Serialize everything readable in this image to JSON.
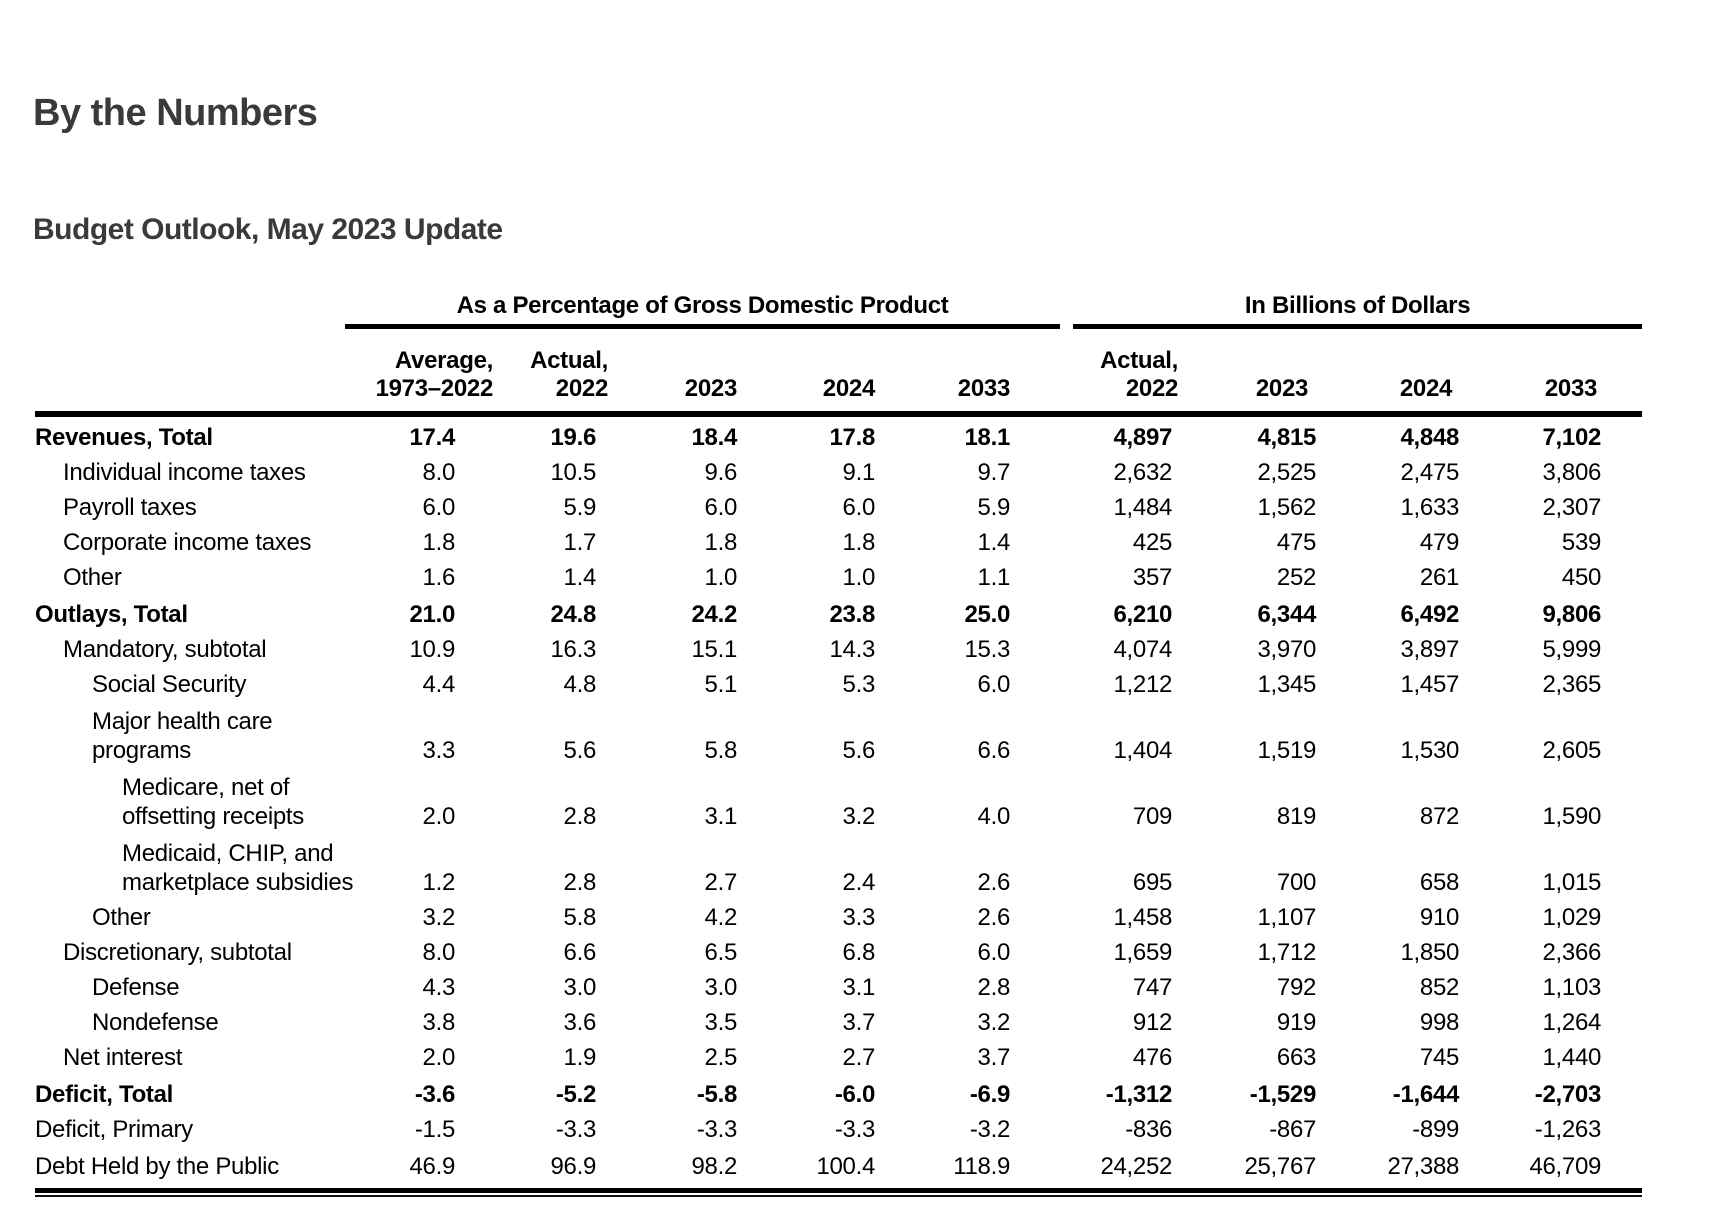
{
  "header": {
    "page_title": "By the Numbers",
    "table_title": "Budget Outlook, May 2023 Update"
  },
  "colors": {
    "background": "#ffffff",
    "heading_text": "#3a3a3a",
    "table_text": "#000000",
    "rule": "#000000"
  },
  "chart_data": {
    "type": "table",
    "title": "By the Numbers",
    "subtitle": "Budget Outlook, May 2023 Update",
    "column_groups": [
      "As a Percentage of Gross Domestic Product",
      "In Billions of Dollars"
    ],
    "columns_pct": [
      {
        "line1": "Average,",
        "line2": "1973–2022"
      },
      {
        "line1": "Actual,",
        "line2": "2022"
      },
      {
        "line1": "",
        "line2": "2023"
      },
      {
        "line1": "",
        "line2": "2024"
      },
      {
        "line1": "",
        "line2": "2033"
      }
    ],
    "columns_bn": [
      {
        "line1": "Actual,",
        "line2": "2022"
      },
      {
        "line1": "",
        "line2": "2023"
      },
      {
        "line1": "",
        "line2": "2024"
      },
      {
        "line1": "",
        "line2": "2033"
      }
    ],
    "rows": [
      {
        "label": "Revenues, Total",
        "indent": 0,
        "bold": true,
        "pct": [
          17.4,
          19.6,
          18.4,
          17.8,
          18.1
        ],
        "billions": [
          4897,
          4815,
          4848,
          7102
        ]
      },
      {
        "label": "Individual income taxes",
        "indent": 1,
        "pct": [
          8.0,
          10.5,
          9.6,
          9.1,
          9.7
        ],
        "billions": [
          2632,
          2525,
          2475,
          3806
        ]
      },
      {
        "label": "Payroll taxes",
        "indent": 1,
        "pct": [
          6.0,
          5.9,
          6.0,
          6.0,
          5.9
        ],
        "billions": [
          1484,
          1562,
          1633,
          2307
        ]
      },
      {
        "label": "Corporate income taxes",
        "indent": 1,
        "pct": [
          1.8,
          1.7,
          1.8,
          1.8,
          1.4
        ],
        "billions": [
          425,
          475,
          479,
          539
        ]
      },
      {
        "label": "Other",
        "indent": 1,
        "pct": [
          1.6,
          1.4,
          1.0,
          1.0,
          1.1
        ],
        "billions": [
          357,
          252,
          261,
          450
        ]
      },
      {
        "label": "Outlays, Total",
        "indent": 0,
        "bold": true,
        "space_before": true,
        "pct": [
          21.0,
          24.8,
          24.2,
          23.8,
          25.0
        ],
        "billions": [
          6210,
          6344,
          6492,
          9806
        ]
      },
      {
        "label": "Mandatory, subtotal",
        "indent": 1,
        "pct": [
          10.9,
          16.3,
          15.1,
          14.3,
          15.3
        ],
        "billions": [
          4074,
          3970,
          3897,
          5999
        ]
      },
      {
        "label": "Social Security",
        "indent": 2,
        "pct": [
          4.4,
          4.8,
          5.1,
          5.3,
          6.0
        ],
        "billions": [
          1212,
          1345,
          1457,
          2365
        ]
      },
      {
        "label": "Major health care programs",
        "label_lines": [
          "Major health care",
          "programs"
        ],
        "indent": 2,
        "pct": [
          3.3,
          5.6,
          5.8,
          5.6,
          6.6
        ],
        "billions": [
          1404,
          1519,
          1530,
          2605
        ]
      },
      {
        "label": "Medicare, net of offsetting receipts",
        "label_lines": [
          "Medicare, net of",
          "offsetting receipts"
        ],
        "indent": 3,
        "pct": [
          2.0,
          2.8,
          3.1,
          3.2,
          4.0
        ],
        "billions": [
          709,
          819,
          872,
          1590
        ]
      },
      {
        "label": "Medicaid, CHIP, and marketplace subsidies",
        "label_lines": [
          "Medicaid, CHIP, and",
          "marketplace subsidies"
        ],
        "indent": 3,
        "pct": [
          1.2,
          2.8,
          2.7,
          2.4,
          2.6
        ],
        "billions": [
          695,
          700,
          658,
          1015
        ]
      },
      {
        "label": "Other",
        "indent": 2,
        "pct": [
          3.2,
          5.8,
          4.2,
          3.3,
          2.6
        ],
        "billions": [
          1458,
          1107,
          910,
          1029
        ]
      },
      {
        "label": "Discretionary, subtotal",
        "indent": 1,
        "pct": [
          8.0,
          6.6,
          6.5,
          6.8,
          6.0
        ],
        "billions": [
          1659,
          1712,
          1850,
          2366
        ]
      },
      {
        "label": "Defense",
        "indent": 2,
        "pct": [
          4.3,
          3.0,
          3.0,
          3.1,
          2.8
        ],
        "billions": [
          747,
          792,
          852,
          1103
        ]
      },
      {
        "label": "Nondefense",
        "indent": 2,
        "pct": [
          3.8,
          3.6,
          3.5,
          3.7,
          3.2
        ],
        "billions": [
          912,
          919,
          998,
          1264
        ]
      },
      {
        "label": "Net interest",
        "indent": 1,
        "pct": [
          2.0,
          1.9,
          2.5,
          2.7,
          3.7
        ],
        "billions": [
          476,
          663,
          745,
          1440
        ]
      },
      {
        "label": "Deficit, Total",
        "indent": 0,
        "bold": true,
        "space_before": true,
        "pct": [
          -3.6,
          -5.2,
          -5.8,
          -6.0,
          -6.9
        ],
        "billions": [
          -1312,
          -1529,
          -1644,
          -2703
        ]
      },
      {
        "label": "Deficit, Primary",
        "indent": 0,
        "pct": [
          -1.5,
          -3.3,
          -3.3,
          -3.3,
          -3.2
        ],
        "billions": [
          -836,
          -867,
          -899,
          -1263
        ]
      },
      {
        "label": "Debt Held by the Public",
        "indent": 0,
        "space_before": true,
        "pct": [
          46.9,
          96.9,
          98.2,
          100.4,
          118.9
        ],
        "billions": [
          24252,
          25767,
          27388,
          46709
        ]
      }
    ]
  }
}
